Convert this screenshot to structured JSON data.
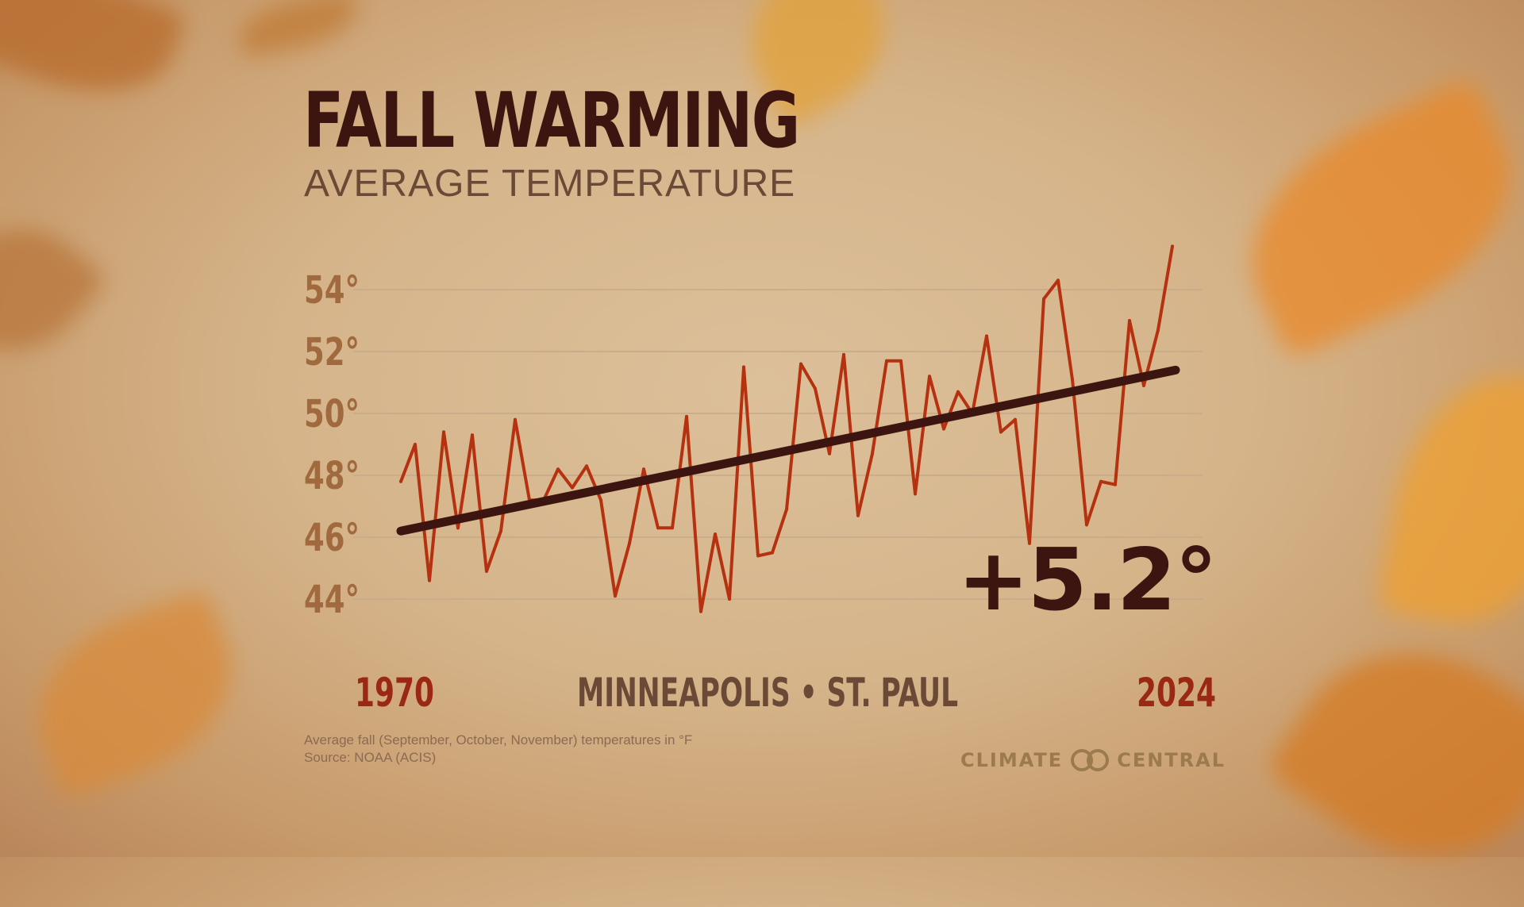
{
  "title": "FALL WARMING",
  "subtitle": "AVERAGE TEMPERATURE",
  "location": "MINNEAPOLIS • ST. PAUL",
  "change_label": "+5.2°",
  "footnote": {
    "line1": "Average fall (September, October, November) temperatures in °F",
    "line2": "Source: NOAA (ACIS)"
  },
  "logo": {
    "left_text": "CLIMATE",
    "right_text": "CENTRAL",
    "icon": "two-linked-rings-icon"
  },
  "colors": {
    "line": "#b5310f",
    "trend": "#3d1510",
    "tick": "#a06a3e",
    "year": "#9a2812",
    "location": "#6a4a36",
    "grid": "#c6a88a"
  },
  "chart_data": {
    "type": "line",
    "title": "FALL WARMING",
    "subtitle": "AVERAGE TEMPERATURE",
    "xlabel": "",
    "ylabel": "",
    "x_start_label": "1970",
    "x_end_label": "2024",
    "xlim": [
      1970,
      2024
    ],
    "ylim": [
      44,
      55.5
    ],
    "y_ticks": [
      44,
      46,
      48,
      50,
      52,
      54
    ],
    "y_tick_labels": [
      "44°",
      "46°",
      "48°",
      "50°",
      "52°",
      "54°"
    ],
    "grid": true,
    "legend": "none",
    "x": [
      1970,
      1971,
      1972,
      1973,
      1974,
      1975,
      1976,
      1977,
      1978,
      1979,
      1980,
      1981,
      1982,
      1983,
      1984,
      1985,
      1986,
      1987,
      1988,
      1989,
      1990,
      1991,
      1992,
      1993,
      1994,
      1995,
      1996,
      1997,
      1998,
      1999,
      2000,
      2001,
      2002,
      2003,
      2004,
      2005,
      2006,
      2007,
      2008,
      2009,
      2010,
      2011,
      2012,
      2013,
      2014,
      2015,
      2016,
      2017,
      2018,
      2019,
      2020,
      2021,
      2022,
      2023,
      2024
    ],
    "series": [
      {
        "values": [
          47.8,
          49.0,
          44.6,
          49.4,
          46.3,
          49.3,
          44.9,
          46.2,
          49.8,
          47.2,
          47.2,
          48.2,
          47.6,
          48.3,
          47.2,
          44.1,
          45.8,
          48.2,
          46.3,
          46.3,
          49.9,
          43.6,
          46.1,
          44.0,
          51.5,
          45.4,
          45.5,
          46.9,
          51.6,
          50.8,
          48.7,
          51.9,
          46.7,
          48.7,
          51.7,
          51.7,
          47.4,
          51.2,
          49.5,
          50.7,
          50.0,
          52.5,
          49.4,
          49.8,
          45.8,
          53.7,
          54.3,
          51.1,
          46.4,
          47.8,
          47.7,
          53.0,
          50.9,
          52.7,
          55.4
        ]
      }
    ],
    "trend": {
      "start": [
        1970,
        46.2
      ],
      "end": [
        2024,
        51.4
      ],
      "label": "+5.2°"
    }
  }
}
